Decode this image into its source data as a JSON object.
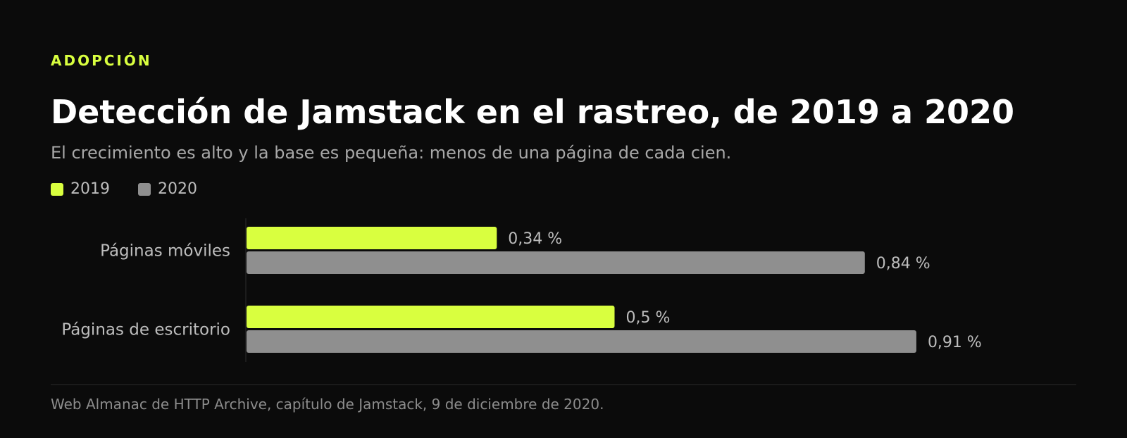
{
  "header": {
    "eyebrow": "ADOPCIÓN",
    "title": "Detección de Jamstack en el rastreo, de 2019 a 2020",
    "subtitle": "El crecimiento es alto y la base es pequeña: menos de una página de cada cien."
  },
  "legend": {
    "position": "top-left",
    "items": [
      {
        "label": "2019",
        "color": "#d9ff3f"
      },
      {
        "label": "2020",
        "color": "#8f8f8f"
      }
    ]
  },
  "colors": {
    "background": "#0b0b0b",
    "accent": "#d9ff3f",
    "secondary": "#8f8f8f"
  },
  "chart_data": {
    "type": "bar",
    "orientation": "horizontal",
    "categories": [
      "Páginas móviles",
      "Páginas de escritorio"
    ],
    "series": [
      {
        "name": "2019",
        "values": [
          0.34,
          0.5
        ],
        "labels": [
          "0,34 %",
          "0,5 %"
        ],
        "color": "#d9ff3f"
      },
      {
        "name": "2020",
        "values": [
          0.84,
          0.91
        ],
        "labels": [
          "0,84 %",
          "0,91 %"
        ],
        "color": "#8f8f8f"
      }
    ],
    "unit": "%",
    "xlim": [
      0,
      1
    ],
    "grid": false
  },
  "footer": {
    "source": "Web Almanac de HTTP Archive, capítulo de Jamstack, 9 de diciembre de 2020."
  }
}
